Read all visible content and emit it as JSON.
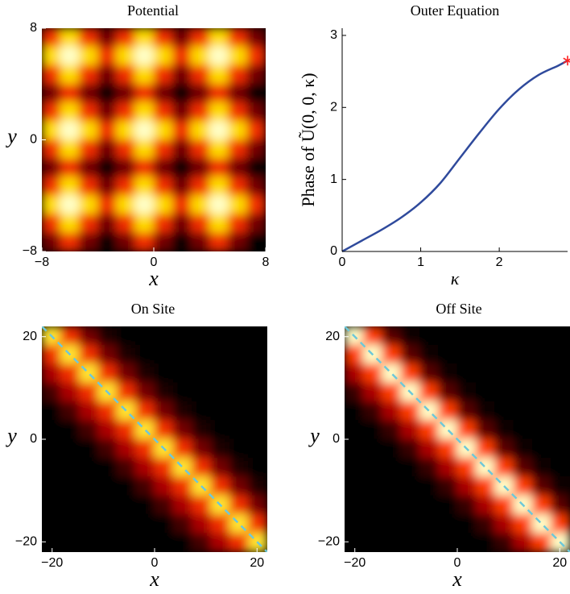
{
  "chart_data": [
    {
      "type": "heatmap",
      "title": "Potential",
      "xlabel": "x",
      "ylabel": "y",
      "xlim": [
        -8,
        8
      ],
      "ylim": [
        -8,
        8
      ],
      "xticks": [
        {
          "value": -8,
          "label": "−8"
        },
        0,
        8
      ],
      "yticks": [
        {
          "value": -8,
          "label": "−8"
        },
        0,
        8
      ],
      "z": [
        [
          0.5,
          0.8,
          0.5,
          0.2,
          0.5,
          0.8,
          0.5,
          0.2,
          0.5,
          0.8,
          0.5,
          0.2
        ],
        [
          0.8,
          1.0,
          0.8,
          0.5,
          0.8,
          1.0,
          0.8,
          0.5,
          0.8,
          1.0,
          0.8,
          0.5
        ],
        [
          0.5,
          0.8,
          0.5,
          0.2,
          0.5,
          0.8,
          0.5,
          0.2,
          0.5,
          0.8,
          0.5,
          0.2
        ],
        [
          0.2,
          0.5,
          0.2,
          0.0,
          0.2,
          0.5,
          0.2,
          0.0,
          0.2,
          0.5,
          0.2,
          0.0
        ],
        [
          0.5,
          0.8,
          0.5,
          0.2,
          0.5,
          0.8,
          0.5,
          0.2,
          0.5,
          0.8,
          0.5,
          0.2
        ],
        [
          0.8,
          1.0,
          0.8,
          0.5,
          0.8,
          1.0,
          0.8,
          0.5,
          0.8,
          1.0,
          0.8,
          0.5
        ],
        [
          0.5,
          0.8,
          0.5,
          0.2,
          0.5,
          0.8,
          0.5,
          0.2,
          0.5,
          0.8,
          0.5,
          0.2
        ],
        [
          0.2,
          0.5,
          0.2,
          0.0,
          0.2,
          0.5,
          0.2,
          0.0,
          0.2,
          0.5,
          0.2,
          0.0
        ],
        [
          0.5,
          0.8,
          0.5,
          0.2,
          0.5,
          0.8,
          0.5,
          0.2,
          0.5,
          0.8,
          0.5,
          0.2
        ],
        [
          0.8,
          1.0,
          0.8,
          0.5,
          0.8,
          1.0,
          0.8,
          0.5,
          0.8,
          1.0,
          0.8,
          0.5
        ],
        [
          0.5,
          0.8,
          0.5,
          0.2,
          0.5,
          0.8,
          0.5,
          0.2,
          0.5,
          0.8,
          0.5,
          0.2
        ],
        [
          0.2,
          0.5,
          0.2,
          0.0,
          0.2,
          0.5,
          0.2,
          0.0,
          0.2,
          0.5,
          0.2,
          0.0
        ]
      ]
    },
    {
      "type": "line",
      "title": "Outer Equation",
      "xlabel": "κ",
      "ylabel": "Phase of Ũ(0, 0, κ)",
      "xlim": [
        0,
        2.87
      ],
      "ylim": [
        0,
        3.1
      ],
      "xticks": [
        0,
        1,
        2
      ],
      "yticks": [
        0,
        1,
        2,
        3
      ],
      "series": [
        {
          "color": "#2f4a9c",
          "x": [
            0,
            0.25,
            0.5,
            0.75,
            1,
            1.25,
            1.5,
            1.75,
            2,
            2.25,
            2.5,
            2.75,
            2.87
          ],
          "values": [
            0,
            0.15,
            0.3,
            0.47,
            0.68,
            0.95,
            1.3,
            1.65,
            1.98,
            2.25,
            2.45,
            2.58,
            2.65
          ]
        }
      ],
      "marker": {
        "x": 2.87,
        "y": 2.65,
        "color": "#ff2020"
      }
    },
    {
      "type": "heatmap",
      "title": "On Site",
      "xlabel": "x",
      "ylabel": "y",
      "xlim": [
        -22,
        22
      ],
      "ylim": [
        -22,
        22
      ],
      "xticks": [
        {
          "value": -20,
          "label": "−20"
        },
        0,
        20
      ],
      "yticks": [
        {
          "value": -20,
          "label": "−20"
        },
        0,
        20
      ],
      "line": {
        "x": [
          -22,
          22
        ],
        "y": [
          22,
          -22
        ],
        "color": "#6fc8d8"
      },
      "z": [
        [
          0.85,
          0.5,
          0.2,
          0.05,
          0,
          0,
          0,
          0,
          0,
          0,
          0,
          0
        ],
        [
          0.5,
          0.85,
          0.5,
          0.2,
          0.05,
          0,
          0,
          0,
          0,
          0,
          0,
          0
        ],
        [
          0.3,
          0.5,
          0.85,
          0.5,
          0.2,
          0.05,
          0,
          0,
          0,
          0,
          0,
          0
        ],
        [
          0.12,
          0.3,
          0.5,
          0.85,
          0.5,
          0.2,
          0.05,
          0,
          0,
          0,
          0,
          0
        ],
        [
          0,
          0.12,
          0.3,
          0.5,
          0.85,
          0.5,
          0.2,
          0.05,
          0,
          0,
          0,
          0
        ],
        [
          0,
          0,
          0.12,
          0.3,
          0.5,
          0.85,
          0.5,
          0.2,
          0.05,
          0,
          0,
          0
        ],
        [
          0,
          0,
          0,
          0.12,
          0.3,
          0.5,
          0.85,
          0.5,
          0.2,
          0.05,
          0,
          0
        ],
        [
          0,
          0,
          0,
          0,
          0.12,
          0.3,
          0.5,
          0.85,
          0.5,
          0.2,
          0.05,
          0
        ],
        [
          0,
          0,
          0,
          0,
          0,
          0.12,
          0.3,
          0.5,
          0.85,
          0.5,
          0.2,
          0.05
        ],
        [
          0,
          0,
          0,
          0,
          0,
          0,
          0.12,
          0.3,
          0.5,
          0.85,
          0.5,
          0.2
        ],
        [
          0,
          0,
          0,
          0,
          0,
          0,
          0,
          0.12,
          0.3,
          0.5,
          0.85,
          0.5
        ],
        [
          0,
          0,
          0,
          0,
          0,
          0,
          0,
          0,
          0.12,
          0.3,
          0.5,
          0.85
        ]
      ]
    },
    {
      "type": "heatmap",
      "title": "Off Site",
      "xlabel": "x",
      "ylabel": "y",
      "xlim": [
        -22,
        22
      ],
      "ylim": [
        -22,
        22
      ],
      "xticks": [
        {
          "value": -20,
          "label": "−20"
        },
        0,
        20
      ],
      "yticks": [
        {
          "value": -20,
          "label": "−20"
        },
        0,
        20
      ],
      "line": {
        "x": [
          -22,
          22
        ],
        "y": [
          22,
          -22
        ],
        "color": "#6fc8d8"
      },
      "z": [
        [
          1.0,
          0.55,
          0.15,
          0.03,
          0,
          0,
          0,
          0,
          0,
          0,
          0,
          0
        ],
        [
          0.55,
          1.0,
          0.55,
          0.15,
          0.03,
          0,
          0,
          0,
          0,
          0,
          0,
          0
        ],
        [
          0.3,
          0.55,
          1.0,
          0.55,
          0.15,
          0.03,
          0,
          0,
          0,
          0,
          0,
          0
        ],
        [
          0.1,
          0.3,
          0.55,
          1.0,
          0.55,
          0.15,
          0.03,
          0,
          0,
          0,
          0,
          0
        ],
        [
          0,
          0.1,
          0.3,
          0.55,
          1.0,
          0.55,
          0.15,
          0.03,
          0,
          0,
          0,
          0
        ],
        [
          0,
          0,
          0.1,
          0.3,
          0.55,
          1.0,
          0.55,
          0.15,
          0.03,
          0,
          0,
          0
        ],
        [
          0,
          0,
          0,
          0.1,
          0.3,
          0.55,
          1.0,
          0.55,
          0.15,
          0.03,
          0,
          0
        ],
        [
          0,
          0,
          0,
          0,
          0.1,
          0.3,
          0.55,
          1.0,
          0.55,
          0.15,
          0.03,
          0
        ],
        [
          0,
          0,
          0,
          0,
          0,
          0.1,
          0.3,
          0.55,
          1.0,
          0.55,
          0.15,
          0.03
        ],
        [
          0,
          0,
          0,
          0,
          0,
          0,
          0.1,
          0.3,
          0.55,
          1.0,
          0.55,
          0.15
        ],
        [
          0,
          0,
          0,
          0,
          0,
          0,
          0,
          0.1,
          0.3,
          0.55,
          1.0,
          0.55
        ],
        [
          0,
          0,
          0,
          0,
          0,
          0,
          0,
          0,
          0.1,
          0.3,
          0.55,
          1.0
        ]
      ]
    }
  ]
}
